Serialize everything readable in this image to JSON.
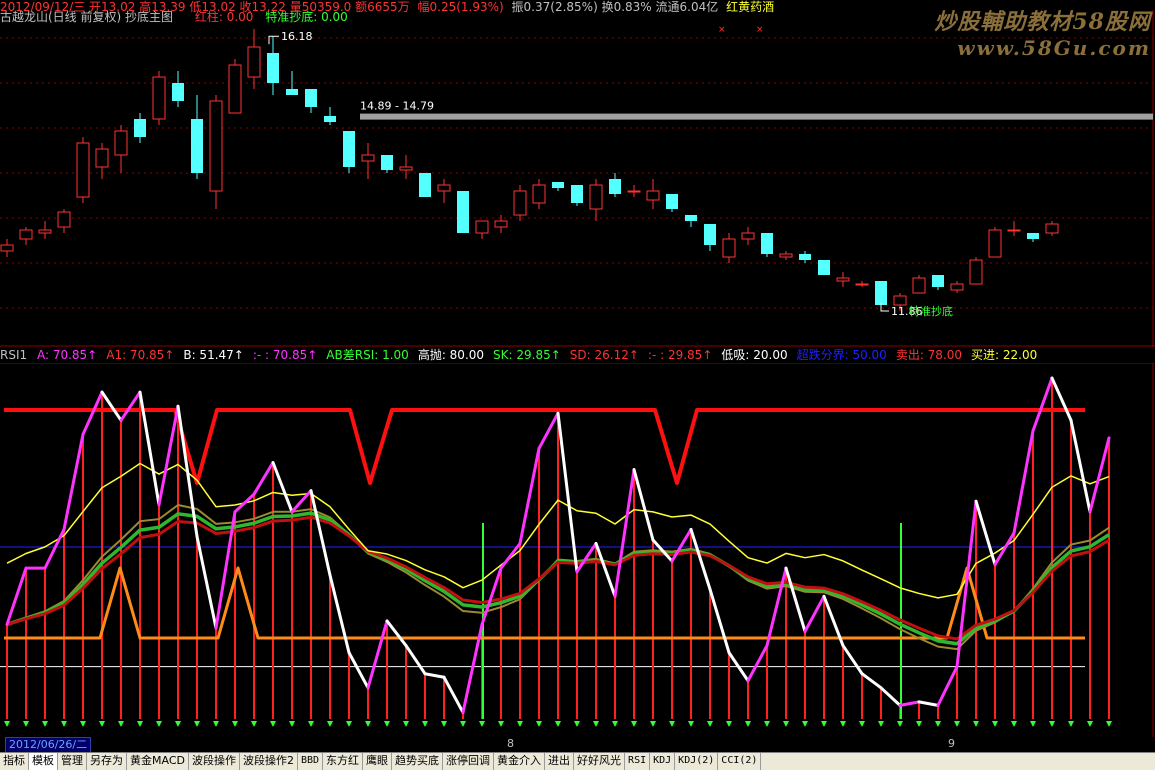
{
  "colors": {
    "up": "#ff3232",
    "down": "#54ffff",
    "grid": "#8b0000",
    "magenta": "#ff33ff",
    "white": "#ffffff",
    "yellow": "#ffff33",
    "orange": "#ff8c1a",
    "green": "#2fb82f",
    "olive": "#9a8a30",
    "darkred": "#c01010",
    "blue": "#2020ff"
  },
  "header": {
    "title": "古越龙山(日线 前复权) 抄底主图",
    "label_a": "红柱: 0.00",
    "label_b": "特准抄底: 0.00",
    "ohlc": "2012/09/12/三 开13.02 高13.39 低13.02 收13.22 量50359.0 额6655万",
    "change": "幅0.25(1.93%)",
    "amp": "振0.37(2.85%) 换0.83% 流通6.04亿",
    "sector": "红黄药酒"
  },
  "watermark": {
    "line1": "炒股輔助教材58股网",
    "line2": "www.58Gu.com"
  },
  "price_chart": {
    "high_label": "16.18",
    "band_label": "14.89 - 14.79",
    "low_label": "11.86",
    "signal_text": "特准抄底",
    "band_top": 14.89,
    "band_bottom": 14.79,
    "candles": [
      [
        12.6,
        12.8,
        12.5,
        12.7
      ],
      [
        12.8,
        13.0,
        12.7,
        12.95
      ],
      [
        12.9,
        13.1,
        12.8,
        12.95
      ],
      [
        13.0,
        13.3,
        12.9,
        13.25
      ],
      [
        13.5,
        14.5,
        13.4,
        14.4
      ],
      [
        14.0,
        14.4,
        13.8,
        14.3
      ],
      [
        14.2,
        14.7,
        13.9,
        14.6
      ],
      [
        14.8,
        14.9,
        14.4,
        14.5
      ],
      [
        14.8,
        15.6,
        14.7,
        15.5
      ],
      [
        15.4,
        15.6,
        15.0,
        15.1
      ],
      [
        14.8,
        15.2,
        13.8,
        13.9
      ],
      [
        13.6,
        15.2,
        13.3,
        15.1
      ],
      [
        14.9,
        15.8,
        14.9,
        15.7
      ],
      [
        15.5,
        16.3,
        15.3,
        16.0
      ],
      [
        15.9,
        16.18,
        15.2,
        15.4
      ],
      [
        15.3,
        15.6,
        15.2,
        15.2
      ],
      [
        15.3,
        15.3,
        14.9,
        15.0
      ],
      [
        14.85,
        15.0,
        14.7,
        14.75
      ],
      [
        14.6,
        14.6,
        13.9,
        14.0
      ],
      [
        14.1,
        14.4,
        13.8,
        14.2
      ],
      [
        14.2,
        14.2,
        13.9,
        13.95
      ],
      [
        13.95,
        14.2,
        13.8,
        14.0
      ],
      [
        13.9,
        13.9,
        13.5,
        13.5
      ],
      [
        13.6,
        13.8,
        13.4,
        13.7
      ],
      [
        13.6,
        13.6,
        12.9,
        12.9
      ],
      [
        12.9,
        13.1,
        12.8,
        13.1
      ],
      [
        13.0,
        13.2,
        12.9,
        13.1
      ],
      [
        13.2,
        13.7,
        13.1,
        13.6
      ],
      [
        13.4,
        13.8,
        13.3,
        13.7
      ],
      [
        13.75,
        13.75,
        13.6,
        13.65
      ],
      [
        13.7,
        13.7,
        13.35,
        13.4
      ],
      [
        13.3,
        13.8,
        13.1,
        13.7
      ],
      [
        13.8,
        13.9,
        13.5,
        13.55
      ],
      [
        13.6,
        13.7,
        13.5,
        13.6
      ],
      [
        13.45,
        13.8,
        13.3,
        13.6
      ],
      [
        13.55,
        13.55,
        13.25,
        13.3
      ],
      [
        13.2,
        13.2,
        13.0,
        13.1
      ],
      [
        13.05,
        13.05,
        12.6,
        12.7
      ],
      [
        12.5,
        12.9,
        12.4,
        12.8
      ],
      [
        12.8,
        13.0,
        12.7,
        12.9
      ],
      [
        12.9,
        12.9,
        12.5,
        12.55
      ],
      [
        12.5,
        12.6,
        12.45,
        12.55
      ],
      [
        12.55,
        12.6,
        12.4,
        12.45
      ],
      [
        12.45,
        12.45,
        12.2,
        12.2
      ],
      [
        12.1,
        12.25,
        12.0,
        12.15
      ],
      [
        12.05,
        12.1,
        12.0,
        12.05
      ],
      [
        12.1,
        12.1,
        11.6,
        11.7
      ],
      [
        11.7,
        11.9,
        11.6,
        11.85
      ],
      [
        11.9,
        12.2,
        11.9,
        12.15
      ],
      [
        12.2,
        12.2,
        11.95,
        12.0
      ],
      [
        11.95,
        12.1,
        11.9,
        12.05
      ],
      [
        12.05,
        12.5,
        12.05,
        12.45
      ],
      [
        12.5,
        13.0,
        12.5,
        12.95
      ],
      [
        12.95,
        13.1,
        12.85,
        12.95
      ],
      [
        12.9,
        12.9,
        12.75,
        12.8
      ],
      [
        12.9,
        13.1,
        12.85,
        13.05
      ]
    ]
  },
  "indicator": {
    "name": "RSI1",
    "items": [
      {
        "text": "A: 70.85↑",
        "color": "#ff33ff"
      },
      {
        "text": "A1: 70.85↑",
        "color": "#ff3232"
      },
      {
        "text": "B: 51.47↑",
        "color": "#ffffff"
      },
      {
        "text": ":- : 70.85↑",
        "color": "#ff33ff"
      },
      {
        "text": "AB差RSI: 1.00",
        "color": "#33ff33"
      },
      {
        "text": "高抛: 80.00",
        "color": "#ffffff"
      },
      {
        "text": "SK: 29.85↑",
        "color": "#33ff33"
      },
      {
        "text": "SD: 26.12↑",
        "color": "#ff3232"
      },
      {
        "text": ":- : 29.85↑",
        "color": "#ff3232"
      },
      {
        "text": "低吸: 20.00",
        "color": "#ffffff"
      },
      {
        "text": "超跌分界: 50.00",
        "color": "#2020ff"
      },
      {
        "text": "卖出: 78.00",
        "color": "#ff3232"
      },
      {
        "text": "买进: 22.00",
        "color": "#ffff33"
      }
    ],
    "high_throw": 80,
    "low_buy": 20,
    "boundary": 50,
    "rsi": [
      28,
      44,
      44,
      55,
      82,
      94,
      86,
      94,
      62,
      90,
      53,
      27,
      60,
      65,
      74,
      60,
      66,
      42,
      20,
      10,
      29,
      22,
      14,
      13,
      3,
      28,
      44,
      51,
      78,
      88,
      43,
      51,
      36,
      72,
      52,
      46,
      55,
      38,
      20,
      12,
      22,
      44,
      26,
      36,
      22,
      14,
      10,
      5,
      6,
      5,
      16,
      63,
      45,
      54,
      83,
      98,
      86,
      60,
      81
    ]
  },
  "date_bar": {
    "cursor": "2012/06/26/二",
    "month_8": "8",
    "month_9": "9"
  },
  "tabs": [
    {
      "label": "指标",
      "active": false
    },
    {
      "label": "模板",
      "active": true
    },
    {
      "label": "管理",
      "active": false
    },
    {
      "label": "另存为",
      "active": false
    },
    {
      "label": "黄金MACD",
      "active": false
    },
    {
      "label": "波段操作",
      "active": false
    },
    {
      "label": "波段操作2",
      "active": false
    },
    {
      "label": "BBD",
      "active": false
    },
    {
      "label": "东方红",
      "active": false
    },
    {
      "label": "鹰眼",
      "active": false
    },
    {
      "label": "趋势买底",
      "active": false
    },
    {
      "label": "涨停回调",
      "active": false
    },
    {
      "label": "黄金介入",
      "active": false
    },
    {
      "label": "进出",
      "active": false
    },
    {
      "label": "好好风光",
      "active": false
    },
    {
      "label": "RSI",
      "active": false
    },
    {
      "label": "KDJ",
      "active": false
    },
    {
      "label": "KDJ(2)",
      "active": false
    },
    {
      "label": "CCI(2)",
      "active": false
    }
  ]
}
